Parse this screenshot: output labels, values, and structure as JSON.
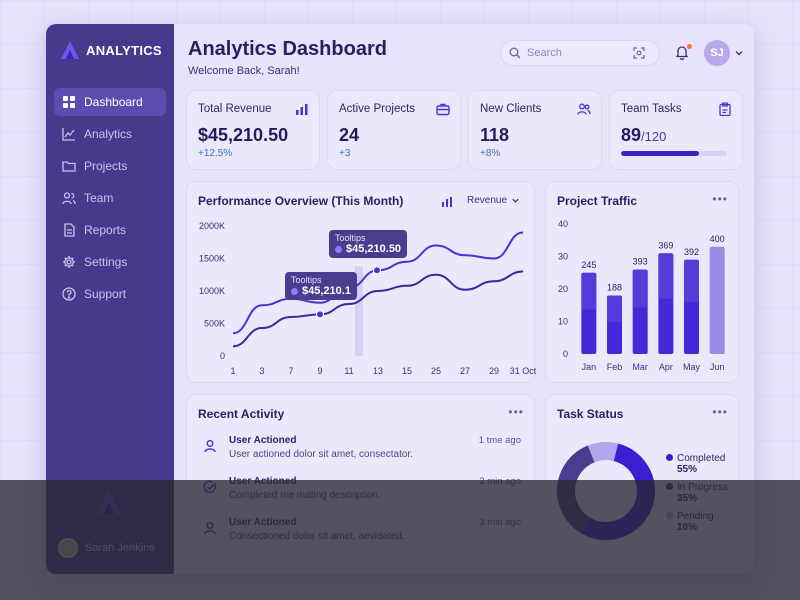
{
  "brand": {
    "name": "ANALYTICS"
  },
  "sidebar": {
    "items": [
      {
        "label": "Dashboard",
        "icon": "dashboard-icon",
        "active": true
      },
      {
        "label": "Analytics",
        "icon": "chart-icon"
      },
      {
        "label": "Projects",
        "icon": "folder-icon"
      },
      {
        "label": "Team",
        "icon": "team-icon"
      },
      {
        "label": "Reports",
        "icon": "document-icon"
      },
      {
        "label": "Settings",
        "icon": "gear-icon"
      },
      {
        "label": "Support",
        "icon": "help-icon"
      }
    ],
    "user_name": "Sarah Jenkins"
  },
  "header": {
    "title": "Analytics Dashboard",
    "subtitle": "Welcome Back, Sarah!",
    "search_placeholder": "Search",
    "avatar_initials": "SJ"
  },
  "stats": [
    {
      "label": "Total Revenue",
      "value": "$45,210.50",
      "delta": "+12.5%",
      "icon": "bar-chart-icon"
    },
    {
      "label": "Active Projects",
      "value": "24",
      "delta": "+3",
      "icon": "briefcase-icon"
    },
    {
      "label": "New Clients",
      "value": "118",
      "delta": "+8%",
      "icon": "users-icon"
    },
    {
      "label": "Team Tasks",
      "value": "89",
      "total": "/120",
      "progress": 0.74,
      "icon": "clipboard-icon"
    }
  ],
  "performance": {
    "title": "Performance Overview (This Month)",
    "dropdown": "Revenue",
    "tooltip_title": "Tooltips",
    "tooltip_1": "$45,210.1",
    "tooltip_2": "$45,210.50"
  },
  "traffic": {
    "title": "Project Traffic"
  },
  "activity": {
    "title": "Recent Activity",
    "items": [
      {
        "title": "User Actioned",
        "desc": "User actioned dolor sit amet, consectator.",
        "time": "1 tme ago",
        "icon": "user-icon"
      },
      {
        "title": "User Actioned",
        "desc": "Completed me mating description.",
        "time": "2 min ago",
        "icon": "check-icon"
      },
      {
        "title": "User Actioned",
        "desc": "Consectioned dolor sit amet, aevidated.",
        "time": "3 min ago",
        "icon": "user-icon"
      }
    ]
  },
  "task_status": {
    "title": "Task Status",
    "legend": [
      {
        "label": "Completed",
        "pct": "55%",
        "color": "#3a1fd0"
      },
      {
        "label": "In Progress",
        "pct": "35%",
        "color": "#4a3d8e"
      },
      {
        "label": "Pending",
        "pct": "10%",
        "color": "#b3a6ef"
      }
    ]
  },
  "chart_data": [
    {
      "type": "line",
      "title": "Performance Overview (This Month)",
      "x": [
        "1",
        "3",
        "7",
        "9",
        "11",
        "13",
        "15",
        "25",
        "27",
        "29",
        "31 Oct"
      ],
      "y_ticks": [
        "0",
        "500K",
        "1000K",
        "1500K",
        "2000K"
      ],
      "ylim": [
        0,
        2000
      ],
      "series": [
        {
          "values": [
            350,
            780,
            880,
            820,
            1050,
            1320,
            1450,
            1700,
            1550,
            1500,
            1900
          ],
          "color": "#4a32d8"
        },
        {
          "values": [
            150,
            430,
            600,
            640,
            800,
            1000,
            1080,
            1250,
            1020,
            1150,
            1300
          ],
          "color": "#3b2a9e"
        }
      ]
    },
    {
      "type": "bar",
      "title": "Project Traffic",
      "categories": [
        "Jan",
        "Feb",
        "Mar",
        "Apr",
        "May",
        "Jun"
      ],
      "labels": [
        "245",
        "188",
        "393",
        "369",
        "392",
        "400"
      ],
      "values": [
        25,
        18,
        26,
        31,
        29,
        33
      ],
      "y_ticks": [
        "0",
        "10",
        "20",
        "30",
        "40"
      ],
      "ylim": [
        0,
        40
      ]
    },
    {
      "type": "pie",
      "title": "Task Status",
      "categories": [
        "Completed",
        "In Progress",
        "Pending"
      ],
      "values": [
        55,
        35,
        10
      ]
    }
  ]
}
